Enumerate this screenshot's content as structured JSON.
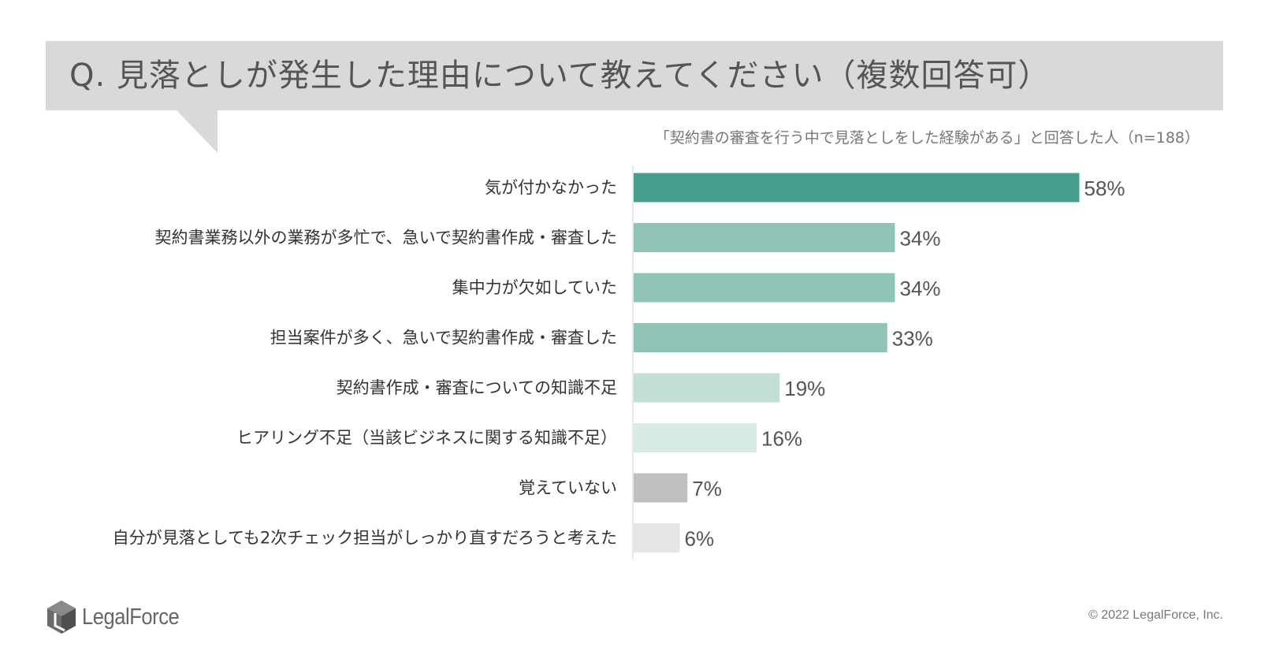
{
  "header": {
    "title": "Q. 見落としが発生した理由について教えてください（複数回答可）",
    "subtitle": "「契約書の審査を行う中で見落としをした経験がある」と回答した人（n=188）"
  },
  "chart_data": {
    "type": "bar",
    "orientation": "horizontal",
    "categories": [
      "気が付かなかった",
      "契約書業務以外の業務が多忙で、急いで契約書作成・審査した",
      "集中力が欠如していた",
      "担当案件が多く、急いで契約書作成・審査した",
      "契約書作成・審査についての知識不足",
      "ヒアリング不足（当該ビジネスに関する知識不足）",
      "覚えていない",
      "自分が見落としても2次チェック担当がしっかり直すだろうと考えた"
    ],
    "values": [
      58,
      34,
      34,
      33,
      19,
      16,
      7,
      6
    ],
    "value_labels": [
      "58%",
      "34%",
      "34%",
      "33%",
      "19%",
      "16%",
      "7%",
      "6%"
    ],
    "unit": "%",
    "bar_colors": [
      "#479e8c",
      "#8fc4b6",
      "#8fc4b6",
      "#8fc4b6",
      "#c1dfd7",
      "#d8eae5",
      "#bfbfbf",
      "#e6e6e6"
    ],
    "xlim": [
      0,
      100
    ],
    "grid": false,
    "legend": "none"
  },
  "footer": {
    "logo_text": "LegalForce",
    "logo_icon": "legalforce-cube-logo",
    "copyright": "© 2022 LegalForce, Inc."
  }
}
